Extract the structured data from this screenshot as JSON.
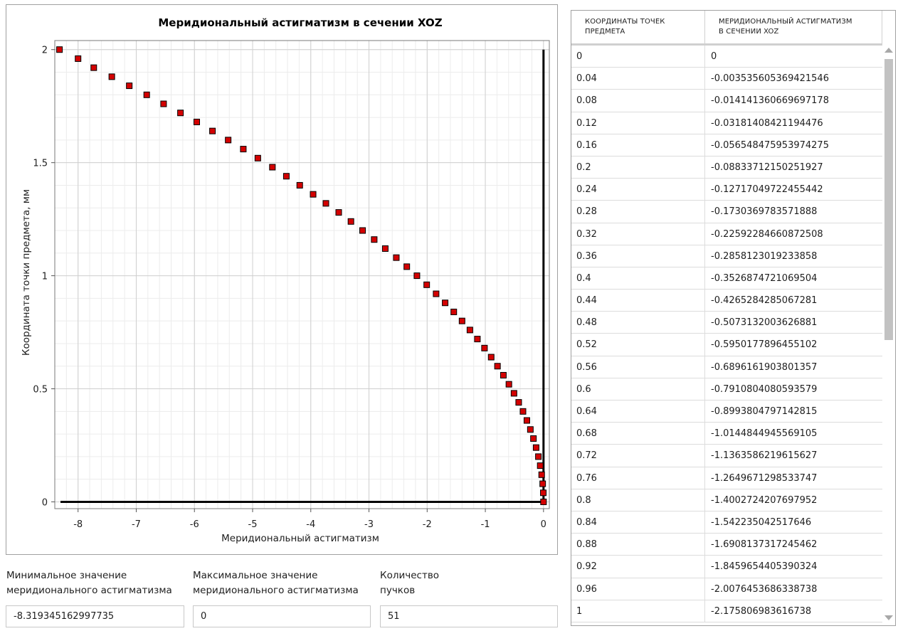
{
  "chart_data": {
    "type": "scatter",
    "title": "Меридиональный астигматизм в сечении XOZ",
    "xlabel": "Меридиональный астигматизм",
    "ylabel": "Координата точки предмета, мм",
    "xlim": [
      -8.4,
      0.1
    ],
    "ylim": [
      -0.03,
      2.04
    ],
    "xticks": [
      -8,
      -7,
      -6,
      -5,
      -4,
      -3,
      -2,
      -1,
      0
    ],
    "yticks": [
      0,
      0.5,
      1,
      1.5,
      2
    ],
    "xtick_labels": [
      "-8",
      "-7",
      "-6",
      "-5",
      "-4",
      "-3",
      "-2",
      "-1",
      "0"
    ],
    "ytick_labels": [
      "0",
      "0.5",
      "1",
      "1.5",
      "2"
    ],
    "grid": true,
    "marker_color": "#d40000",
    "series": [
      {
        "x": [
          0,
          -0.0035,
          -0.0141,
          -0.0318,
          -0.0565,
          -0.0883,
          -0.1272,
          -0.173,
          -0.2259,
          -0.2858,
          -0.3527,
          -0.4265,
          -0.5073,
          -0.595,
          -0.6896,
          -0.791,
          -0.8994,
          -1.0145,
          -1.1364,
          -1.265,
          -1.4003,
          -1.5422,
          -1.6908,
          -1.846,
          -2.0076,
          -2.1758,
          -2.35,
          -2.53,
          -2.72,
          -2.91,
          -3.11,
          -3.31,
          -3.52,
          -3.74,
          -3.96,
          -4.19,
          -4.42,
          -4.66,
          -4.91,
          -5.16,
          -5.42,
          -5.69,
          -5.96,
          -6.24,
          -6.53,
          -6.82,
          -7.12,
          -7.42,
          -7.73,
          -8.0,
          -8.3193
        ],
        "y": [
          0,
          0.04,
          0.08,
          0.12,
          0.16,
          0.2,
          0.24,
          0.28,
          0.32,
          0.36,
          0.4,
          0.44,
          0.48,
          0.52,
          0.56,
          0.6,
          0.64,
          0.68,
          0.72,
          0.76,
          0.8,
          0.84,
          0.88,
          0.92,
          0.96,
          1.0,
          1.04,
          1.08,
          1.12,
          1.16,
          1.2,
          1.24,
          1.28,
          1.32,
          1.36,
          1.4,
          1.44,
          1.48,
          1.52,
          1.56,
          1.6,
          1.64,
          1.68,
          1.72,
          1.76,
          1.8,
          1.84,
          1.88,
          1.92,
          1.96,
          2.0
        ]
      }
    ]
  },
  "fields": {
    "min": {
      "label_line1": "Минимальное значение",
      "label_line2": "меридионального астигматизма",
      "value": "-8.319345162997735"
    },
    "max": {
      "label_line1": "Максимальное значение",
      "label_line2": "меридионального астигматизма",
      "value": "0"
    },
    "count": {
      "label_line1": "Количество",
      "label_line2": "пучков",
      "value": "51"
    }
  },
  "table": {
    "col1_line1": "КООРДИНАТЫ ТОЧЕК",
    "col1_line2": "ПРЕДМЕТА",
    "col2_line1": "МЕРИДИОНАЛЬНЫЙ АСТИГМАТИЗМ",
    "col2_line2": "В СЕЧЕНИИ XOZ",
    "rows": [
      [
        "0",
        "0"
      ],
      [
        "0.04",
        "-0.003535605369421546"
      ],
      [
        "0.08",
        "-0.014141360669697178"
      ],
      [
        "0.12",
        "-0.03181408421194476"
      ],
      [
        "0.16",
        "-0.056548475953974275"
      ],
      [
        "0.2",
        "-0.08833712150251927"
      ],
      [
        "0.24",
        "-0.12717049722455442"
      ],
      [
        "0.28",
        "-0.1730369783571888"
      ],
      [
        "0.32",
        "-0.22592284660872508"
      ],
      [
        "0.36",
        "-0.2858123019233858"
      ],
      [
        "0.4",
        "-0.3526874721069504"
      ],
      [
        "0.44",
        "-0.4265284285067281"
      ],
      [
        "0.48",
        "-0.507313200362688​1"
      ],
      [
        "0.52",
        "-0.5950177896455102"
      ],
      [
        "0.56",
        "-0.6896161903801357"
      ],
      [
        "0.6",
        "-0.7910804080593579"
      ],
      [
        "0.64",
        "-0.8993804797142815"
      ],
      [
        "0.68",
        "-1.0144844945569105"
      ],
      [
        "0.72",
        "-1.1363586219615627"
      ],
      [
        "0.76",
        "-1.2649671298533747"
      ],
      [
        "0.8",
        "-1.4002724207697952"
      ],
      [
        "0.84",
        "-1.542235042517646"
      ],
      [
        "0.88",
        "-1.6908137317245462"
      ],
      [
        "0.92",
        "-1.8459654405390324"
      ],
      [
        "0.96",
        "-2.0076453686338738"
      ],
      [
        "1",
        "-2.175806983616738"
      ]
    ]
  },
  "icons": {
    "scroll_up": "arrow-up-icon",
    "scroll_down": "arrow-down-icon"
  }
}
